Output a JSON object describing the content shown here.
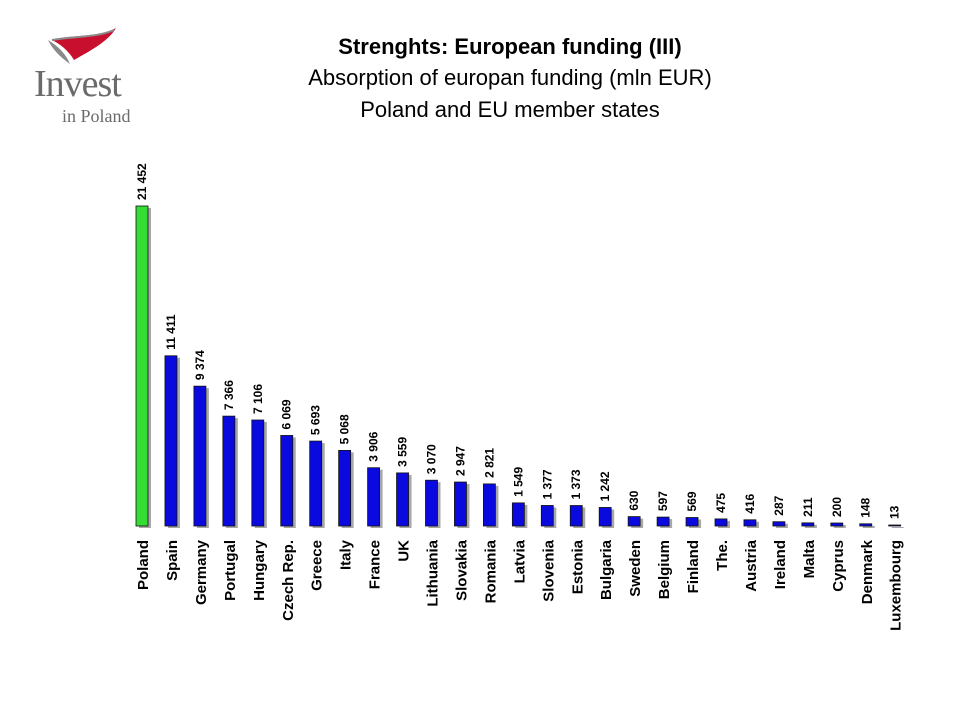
{
  "logo": {
    "word": "Invest",
    "sub": "in Poland",
    "colors": {
      "red": "#c8102e",
      "gray": "#8a8a8a",
      "text": "#6b6b6b"
    }
  },
  "chart_data": {
    "type": "bar",
    "title": "Strenghts: European funding (III)",
    "subtitle_lines": [
      "Absorption of europan funding (mln EUR)",
      "Poland and  EU member states"
    ],
    "categories": [
      "Poland",
      "Spain",
      "Germany",
      "Portugal",
      "Hungary",
      "Czech Rep.",
      "Greece",
      "Italy",
      "France",
      "UK",
      "Lithuania",
      "Slovakia",
      "Romania",
      "Latvia",
      "Slovenia",
      "Estonia",
      "Bulgaria",
      "Sweden",
      "Belgium",
      "Finland",
      "The.",
      "Austria",
      "Ireland",
      "Malta",
      "Cyprus",
      "Denmark",
      "Luxembourg"
    ],
    "values": [
      21452,
      11411,
      9374,
      7366,
      7106,
      6069,
      5693,
      5068,
      3906,
      3559,
      3070,
      2947,
      2821,
      1549,
      1377,
      1373,
      1242,
      630,
      597,
      569,
      475,
      416,
      287,
      211,
      200,
      148,
      13
    ],
    "value_labels": [
      "21 452",
      "11 411",
      "9 374",
      "7 366",
      "7 106",
      "6 069",
      "5 693",
      "5 068",
      "3 906",
      "3 559",
      "3 070",
      "2 947",
      "2 821",
      "1 549",
      "1 377",
      "1 373",
      "1 242",
      "630",
      "597",
      "569",
      "475",
      "416",
      "287",
      "211",
      "200",
      "148",
      "13"
    ],
    "highlight_category": "Poland",
    "colors": {
      "highlight": "#33dd33",
      "bar": "#0a0adf",
      "shadow": "#a8a8a8"
    },
    "ylim": [
      0,
      21452
    ],
    "grid": false,
    "legend": false,
    "label_orientation": "vertical"
  }
}
